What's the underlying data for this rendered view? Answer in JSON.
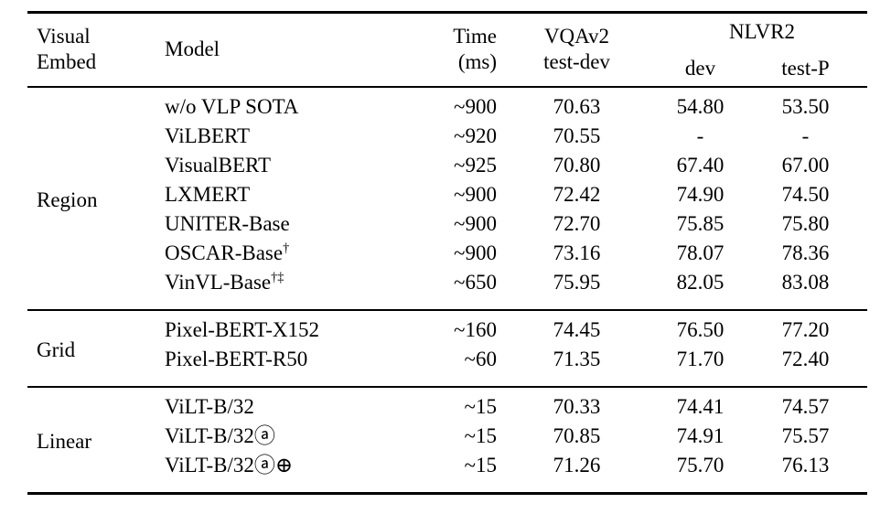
{
  "colors": {
    "text": "#000000",
    "background": "#ffffff",
    "rule": "#000000"
  },
  "table": {
    "header": {
      "visual_line1": "Visual",
      "visual_line2": "Embed",
      "model": "Model",
      "time_line1": "Time",
      "time_line2": "(ms)",
      "vqa_line1": "VQAv2",
      "vqa_line2": "test-dev",
      "nlvr2": "NLVR2",
      "nlvr2_dev": "dev",
      "nlvr2_testp": "test-P"
    },
    "groups": [
      {
        "label": "Region",
        "rows": [
          {
            "model": "w/o VLP SOTA",
            "model_sup": "",
            "time": "~900",
            "vqav2": "70.63",
            "dev": "54.80",
            "testp": "53.50"
          },
          {
            "model": "ViLBERT",
            "model_sup": "",
            "time": "~920",
            "vqav2": "70.55",
            "dev": "-",
            "testp": "-"
          },
          {
            "model": "VisualBERT",
            "model_sup": "",
            "time": "~925",
            "vqav2": "70.80",
            "dev": "67.40",
            "testp": "67.00"
          },
          {
            "model": "LXMERT",
            "model_sup": "",
            "time": "~900",
            "vqav2": "72.42",
            "dev": "74.90",
            "testp": "74.50"
          },
          {
            "model": "UNITER-Base",
            "model_sup": "",
            "time": "~900",
            "vqav2": "72.70",
            "dev": "75.85",
            "testp": "75.80"
          },
          {
            "model": "OSCAR-Base",
            "model_sup": "†",
            "time": "~900",
            "vqav2": "73.16",
            "dev": "78.07",
            "testp": "78.36"
          },
          {
            "model": "VinVL-Base",
            "model_sup": "†‡",
            "time": "~650",
            "vqav2": "75.95",
            "dev": "82.05",
            "testp": "83.08"
          }
        ]
      },
      {
        "label": "Grid",
        "rows": [
          {
            "model": "Pixel-BERT-X152",
            "model_sup": "",
            "time": "~160",
            "vqav2": "74.45",
            "dev": "76.50",
            "testp": "77.20"
          },
          {
            "model": "Pixel-BERT-R50",
            "model_sup": "",
            "time": "~60",
            "vqav2": "71.35",
            "dev": "71.70",
            "testp": "72.40"
          }
        ]
      },
      {
        "label": "Linear",
        "rows": [
          {
            "model": "ViLT-B/32",
            "model_sup": "",
            "time": "~15",
            "vqav2": "70.33",
            "dev": "74.41",
            "testp": "74.57"
          },
          {
            "model": "ViLT-B/32ⓐ",
            "model_sup": "",
            "time": "~15",
            "vqav2": "70.85",
            "dev": "74.91",
            "testp": "75.57"
          },
          {
            "model": "ViLT-B/32ⓐ⊕",
            "model_sup": "",
            "time": "~15",
            "vqav2": "71.26",
            "dev": "75.70",
            "testp": "76.13"
          }
        ]
      }
    ]
  }
}
